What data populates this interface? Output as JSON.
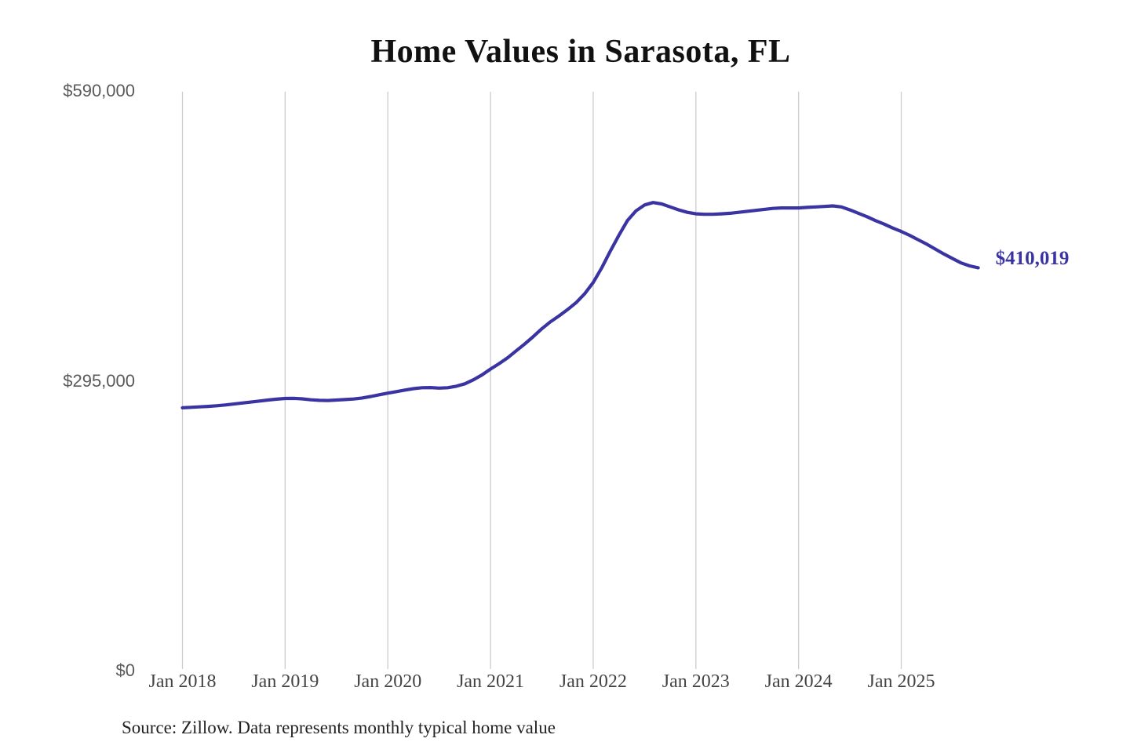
{
  "header": {
    "title": "Home Values in Sarasota, FL"
  },
  "footer": {
    "source": "Source: Zillow. Data represents monthly typical home value"
  },
  "chart_data": {
    "type": "line",
    "title": "Home Values in Sarasota, FL",
    "xlabel": "",
    "ylabel": "",
    "unit": "USD",
    "ylim": [
      0,
      590000
    ],
    "grid": "vertical-only",
    "legend": "none",
    "line_color": "#3a34a3",
    "grid_color": "#cccccc",
    "latest_value": 410019,
    "end_label": "$410,019",
    "y_ticks": [
      {
        "label": "$590,000",
        "value": 590000
      },
      {
        "label": "$295,000",
        "value": 295000
      },
      {
        "label": "$0",
        "value": 0
      }
    ],
    "x_tick_labels": [
      "Jan 2018",
      "Jan 2019",
      "Jan 2020",
      "Jan 2021",
      "Jan 2022",
      "Jan 2023",
      "Jan 2024",
      "Jan 2025"
    ],
    "x_tick_month_index": [
      0,
      12,
      24,
      36,
      48,
      60,
      72,
      84
    ],
    "dates": [
      "Jan 2018",
      "Feb 2018",
      "Mar 2018",
      "Apr 2018",
      "May 2018",
      "Jun 2018",
      "Jul 2018",
      "Aug 2018",
      "Sep 2018",
      "Oct 2018",
      "Nov 2018",
      "Dec 2018",
      "Jan 2019",
      "Feb 2019",
      "Mar 2019",
      "Apr 2019",
      "May 2019",
      "Jun 2019",
      "Jul 2019",
      "Aug 2019",
      "Sep 2019",
      "Oct 2019",
      "Nov 2019",
      "Dec 2019",
      "Jan 2020",
      "Feb 2020",
      "Mar 2020",
      "Apr 2020",
      "May 2020",
      "Jun 2020",
      "Jul 2020",
      "Aug 2020",
      "Sep 2020",
      "Oct 2020",
      "Nov 2020",
      "Dec 2020",
      "Jan 2021",
      "Feb 2021",
      "Mar 2021",
      "Apr 2021",
      "May 2021",
      "Jun 2021",
      "Jul 2021",
      "Aug 2021",
      "Sep 2021",
      "Oct 2021",
      "Nov 2021",
      "Dec 2021",
      "Jan 2022",
      "Feb 2022",
      "Mar 2022",
      "Apr 2022",
      "May 2022",
      "Jun 2022",
      "Jul 2022",
      "Aug 2022",
      "Sep 2022",
      "Oct 2022",
      "Nov 2022",
      "Dec 2022",
      "Jan 2023",
      "Feb 2023",
      "Mar 2023",
      "Apr 2023",
      "May 2023",
      "Jun 2023",
      "Jul 2023",
      "Aug 2023",
      "Sep 2023",
      "Oct 2023",
      "Nov 2023",
      "Dec 2023",
      "Jan 2024",
      "Feb 2024",
      "Mar 2024",
      "Apr 2024",
      "May 2024",
      "Jun 2024",
      "Jul 2024",
      "Aug 2024",
      "Sep 2024",
      "Oct 2024",
      "Nov 2024",
      "Dec 2024",
      "Jan 2025",
      "Feb 2025",
      "Mar 2025",
      "Apr 2025",
      "May 2025",
      "Jun 2025",
      "Jul 2025",
      "Aug 2025",
      "Sep 2025",
      "Oct 2025"
    ],
    "values": [
      267500,
      268000,
      268500,
      269000,
      269600,
      270400,
      271400,
      272400,
      273400,
      274400,
      275400,
      276300,
      277000,
      277100,
      276600,
      275700,
      275100,
      275000,
      275400,
      275900,
      276500,
      277500,
      279000,
      280800,
      282500,
      284000,
      285600,
      287000,
      288000,
      288100,
      287600,
      288000,
      289500,
      292000,
      296000,
      301000,
      307000,
      312500,
      318500,
      325500,
      332500,
      340000,
      348000,
      355000,
      361000,
      367500,
      374500,
      383500,
      395000,
      410000,
      427000,
      443000,
      458000,
      468000,
      474000,
      476500,
      475000,
      472000,
      469000,
      466500,
      465000,
      464500,
      464500,
      465000,
      465500,
      466500,
      467500,
      468500,
      469500,
      470500,
      471000,
      471000,
      471000,
      471500,
      472000,
      472500,
      473000,
      472000,
      469000,
      465500,
      462000,
      458000,
      454500,
      450500,
      447000,
      443000,
      438500,
      434000,
      429000,
      424000,
      419500,
      415000,
      412000,
      410019
    ]
  }
}
